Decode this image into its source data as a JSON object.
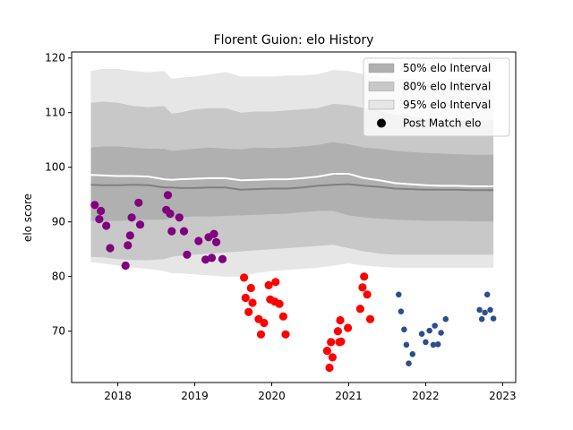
{
  "chart_data": {
    "type": "scatter",
    "title": "Florent Guion: elo History",
    "xlabel": "",
    "ylabel": "elo score",
    "xlim": [
      2017.4,
      2023.17
    ],
    "ylim": [
      60.6,
      121.1
    ],
    "x_ticks": [
      2018,
      2019,
      2020,
      2021,
      2022,
      2023
    ],
    "y_ticks": [
      70,
      80,
      90,
      100,
      110,
      120
    ],
    "grid": false,
    "legend_placement": "top-right",
    "legend": {
      "band50": "50% elo Interval",
      "band80": "80% elo Interval",
      "band95": "95% elo Interval",
      "points": "Post Match elo"
    },
    "colors": {
      "band50": "#b0b0b0",
      "band80": "#c8c8c8",
      "band95": "#e6e6e6",
      "median_line": "#808080",
      "mean_line": "#ffffff",
      "season_a": "#800080",
      "season_b": "#ff0000",
      "season_c": "#2c4e8c"
    },
    "bands": {
      "x": [
        2017.65,
        2017.8,
        2018.0,
        2018.2,
        2018.4,
        2018.6,
        2018.7,
        2018.8,
        2019.0,
        2019.2,
        2019.4,
        2019.6,
        2019.8,
        2020.0,
        2020.2,
        2020.4,
        2020.6,
        2020.8,
        2021.0,
        2021.2,
        2021.4,
        2021.6,
        2021.8,
        2022.0,
        2022.2,
        2022.4,
        2022.6,
        2022.88
      ],
      "p95_upper": [
        117.6,
        118.0,
        118.0,
        117.6,
        117.4,
        117.6,
        116.2,
        116.4,
        116.6,
        117.0,
        117.4,
        116.6,
        116.6,
        116.6,
        116.8,
        116.8,
        117.0,
        117.8,
        117.6,
        117.0,
        116.8,
        116.0,
        116.2,
        115.8,
        116.0,
        116.2,
        116.2,
        116.2
      ],
      "p80_upper": [
        111.8,
        112.0,
        111.8,
        111.2,
        111.0,
        111.2,
        109.8,
        110.0,
        110.6,
        110.8,
        110.8,
        110.0,
        110.2,
        110.2,
        110.4,
        110.6,
        110.8,
        111.6,
        111.4,
        110.8,
        110.4,
        109.6,
        109.4,
        108.8,
        108.8,
        108.8,
        108.6,
        108.6
      ],
      "p50_upper": [
        103.6,
        103.8,
        103.8,
        103.6,
        103.4,
        103.4,
        103.0,
        103.1,
        103.4,
        103.6,
        103.4,
        103.3,
        103.6,
        103.5,
        103.6,
        103.8,
        104.1,
        104.6,
        104.2,
        103.6,
        103.4,
        103.0,
        102.8,
        102.6,
        102.5,
        102.4,
        102.3,
        102.3
      ],
      "p50_lower": [
        90.2,
        90.2,
        90.2,
        90.3,
        90.4,
        90.4,
        90.6,
        90.8,
        91.0,
        91.0,
        91.1,
        91.2,
        91.3,
        91.4,
        91.5,
        91.8,
        92.0,
        92.0,
        91.2,
        90.8,
        90.6,
        90.4,
        90.3,
        90.2,
        90.2,
        90.2,
        90.1,
        90.1
      ],
      "p80_lower": [
        83.6,
        83.5,
        83.2,
        83.0,
        83.0,
        83.2,
        83.6,
        83.8,
        84.0,
        84.2,
        84.4,
        84.6,
        84.8,
        85.0,
        85.2,
        85.4,
        85.6,
        85.8,
        85.2,
        84.6,
        84.2,
        84.0,
        84.0,
        84.0,
        84.0,
        84.0,
        84.0,
        84.0
      ],
      "p95_lower": [
        82.6,
        82.4,
        82.0,
        81.6,
        81.4,
        81.0,
        80.6,
        80.6,
        80.4,
        80.2,
        80.0,
        80.0,
        80.6,
        81.0,
        81.2,
        81.4,
        81.6,
        82.0,
        82.4,
        82.0,
        81.8,
        81.6,
        81.6,
        81.6,
        81.6,
        81.6,
        81.6,
        81.6
      ],
      "median": [
        96.8,
        96.7,
        96.7,
        96.8,
        96.7,
        96.3,
        96.3,
        96.2,
        96.2,
        96.3,
        96.3,
        95.9,
        96.0,
        96.1,
        96.1,
        96.3,
        96.6,
        96.8,
        96.9,
        96.6,
        96.4,
        96.1,
        96.0,
        95.9,
        95.9,
        95.9,
        95.8,
        95.8
      ],
      "mean": [
        98.6,
        98.5,
        98.4,
        98.4,
        98.3,
        97.8,
        97.7,
        97.8,
        97.9,
        98.0,
        98.0,
        97.6,
        97.7,
        97.8,
        97.8,
        98.0,
        98.3,
        98.8,
        98.8,
        98.0,
        97.6,
        97.1,
        96.9,
        96.7,
        96.6,
        96.6,
        96.5,
        96.5
      ]
    },
    "series": [
      {
        "color": "#800080",
        "marker_size": 6,
        "points": [
          [
            2017.7,
            93.1
          ],
          [
            2017.76,
            90.5
          ],
          [
            2017.78,
            92.0
          ],
          [
            2017.85,
            89.3
          ],
          [
            2017.9,
            85.2
          ],
          [
            2018.1,
            82.0
          ],
          [
            2018.13,
            85.7
          ],
          [
            2018.16,
            87.5
          ],
          [
            2018.18,
            90.8
          ],
          [
            2018.27,
            93.5
          ],
          [
            2018.29,
            89.5
          ],
          [
            2018.63,
            92.2
          ],
          [
            2018.65,
            94.9
          ],
          [
            2018.68,
            91.5
          ],
          [
            2018.7,
            88.3
          ],
          [
            2018.8,
            90.8
          ],
          [
            2018.86,
            88.3
          ],
          [
            2018.9,
            84.0
          ],
          [
            2019.05,
            86.5
          ],
          [
            2019.14,
            83.1
          ],
          [
            2019.18,
            87.2
          ],
          [
            2019.22,
            83.4
          ],
          [
            2019.25,
            87.8
          ],
          [
            2019.28,
            86.3
          ],
          [
            2019.36,
            83.2
          ]
        ]
      },
      {
        "color": "#ff0000",
        "marker_size": 6,
        "points": [
          [
            2019.64,
            79.8
          ],
          [
            2019.66,
            76.1
          ],
          [
            2019.7,
            73.5
          ],
          [
            2019.73,
            77.9
          ],
          [
            2019.75,
            75.2
          ],
          [
            2019.83,
            72.2
          ],
          [
            2019.86,
            69.4
          ],
          [
            2019.9,
            71.5
          ],
          [
            2019.96,
            78.4
          ],
          [
            2019.98,
            75.8
          ],
          [
            2020.05,
            79.0
          ],
          [
            2020.04,
            75.4
          ],
          [
            2020.1,
            75.0
          ],
          [
            2020.15,
            72.7
          ],
          [
            2020.18,
            69.4
          ],
          [
            2020.72,
            66.4
          ],
          [
            2020.75,
            63.3
          ],
          [
            2020.77,
            68.0
          ],
          [
            2020.79,
            65.2
          ],
          [
            2020.86,
            70.0
          ],
          [
            2020.89,
            72.0
          ],
          [
            2020.9,
            68.1
          ],
          [
            2020.88,
            68.0
          ],
          [
            2020.99,
            70.6
          ],
          [
            2021.15,
            74.1
          ],
          [
            2021.18,
            78.0
          ],
          [
            2021.2,
            80.0
          ],
          [
            2021.24,
            76.7
          ],
          [
            2021.28,
            72.2
          ]
        ]
      },
      {
        "color": "#2c4e8c",
        "marker_size": 4,
        "points": [
          [
            2021.65,
            76.7
          ],
          [
            2021.68,
            73.6
          ],
          [
            2021.72,
            70.3
          ],
          [
            2021.75,
            67.5
          ],
          [
            2021.78,
            64.1
          ],
          [
            2021.83,
            65.8
          ],
          [
            2021.95,
            69.5
          ],
          [
            2022.0,
            68.0
          ],
          [
            2022.05,
            70.1
          ],
          [
            2022.1,
            67.5
          ],
          [
            2022.12,
            71.0
          ],
          [
            2022.16,
            67.6
          ],
          [
            2022.2,
            69.7
          ],
          [
            2022.26,
            72.2
          ],
          [
            2022.7,
            73.9
          ],
          [
            2022.73,
            72.2
          ],
          [
            2022.77,
            73.4
          ],
          [
            2022.8,
            76.7
          ],
          [
            2022.84,
            73.9
          ],
          [
            2022.88,
            72.3
          ]
        ]
      }
    ]
  }
}
